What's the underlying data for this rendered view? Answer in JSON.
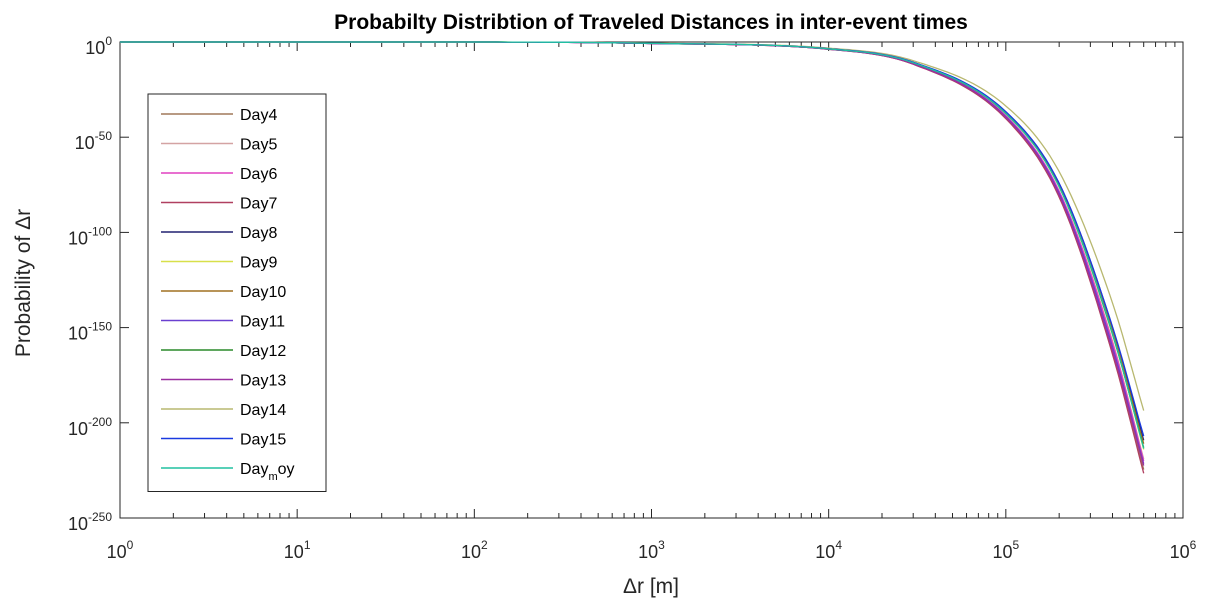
{
  "chart_data": {
    "type": "line",
    "title": "Probabilty Distribtion of Traveled Distances in inter-event times",
    "xlabel": "Δr [m]",
    "ylabel": "Probability of Δr",
    "xscale": "log",
    "yscale": "log",
    "xlim": [
      1,
      1000000
    ],
    "ylim_exponent": [
      -250,
      0
    ],
    "x_ticks": [
      {
        "base": "10",
        "exp": "0"
      },
      {
        "base": "10",
        "exp": "1"
      },
      {
        "base": "10",
        "exp": "2"
      },
      {
        "base": "10",
        "exp": "3"
      },
      {
        "base": "10",
        "exp": "4"
      },
      {
        "base": "10",
        "exp": "5"
      },
      {
        "base": "10",
        "exp": "6"
      }
    ],
    "y_ticks": [
      {
        "base": "10",
        "exp": "0",
        "value": 0
      },
      {
        "base": "10",
        "exp": "-50",
        "value": -50
      },
      {
        "base": "10",
        "exp": "-100",
        "value": -100
      },
      {
        "base": "10",
        "exp": "-150",
        "value": -150
      },
      {
        "base": "10",
        "exp": "-200",
        "value": -200
      },
      {
        "base": "10",
        "exp": "-250",
        "value": -250
      }
    ],
    "legend_position": "left",
    "x": [
      1,
      10,
      100,
      1000,
      10000,
      30000,
      100000,
      200000,
      400000,
      600000
    ],
    "series": [
      {
        "name": "Day4",
        "color": "#a0785a",
        "y_exponent": [
          0,
          0,
          -0.01,
          -0.8,
          -3.8,
          -11.6,
          -40.0,
          -81.0,
          -163.0,
          -224.6
        ]
      },
      {
        "name": "Day5",
        "color": "#d4a3a3",
        "y_exponent": [
          0,
          0,
          -0.01,
          -0.8,
          -3.7,
          -11.2,
          -38.6,
          -78.2,
          -157.0,
          -219.0
        ]
      },
      {
        "name": "Day6",
        "color": "#e040c0",
        "y_exponent": [
          0,
          0,
          -0.01,
          -0.8,
          -3.7,
          -11.3,
          -38.8,
          -78.5,
          -158.0,
          -220.0
        ]
      },
      {
        "name": "Day7",
        "color": "#b04060",
        "y_exponent": [
          0,
          0,
          -0.01,
          -0.8,
          -3.8,
          -11.7,
          -40.3,
          -81.5,
          -164.0,
          -226.5
        ]
      },
      {
        "name": "Day8",
        "color": "#202070",
        "y_exponent": [
          0,
          0,
          -0.01,
          -0.7,
          -3.5,
          -10.7,
          -36.7,
          -74.4,
          -150.0,
          -209.2
        ]
      },
      {
        "name": "Day9",
        "color": "#d8e04a",
        "y_exponent": [
          0,
          0,
          -0.01,
          -0.7,
          -3.6,
          -10.9,
          -37.4,
          -75.8,
          -153.0,
          -214.0
        ]
      },
      {
        "name": "Day10",
        "color": "#a07020",
        "y_exponent": [
          0,
          0,
          -0.01,
          -0.7,
          -3.5,
          -10.8,
          -37.1,
          -75.1,
          -151.5,
          -211.0
        ]
      },
      {
        "name": "Day11",
        "color": "#6a40d0",
        "y_exponent": [
          0,
          0,
          -0.01,
          -0.8,
          -3.7,
          -11.4,
          -39.2,
          -79.4,
          -160.0,
          -221.5
        ]
      },
      {
        "name": "Day12",
        "color": "#2a8a2a",
        "y_exponent": [
          0,
          0,
          -0.01,
          -0.7,
          -3.6,
          -10.9,
          -37.6,
          -76.0,
          -153.5,
          -213.0
        ]
      },
      {
        "name": "Day13",
        "color": "#9a30a0",
        "y_exponent": [
          0,
          0,
          -0.01,
          -0.8,
          -3.8,
          -11.5,
          -39.6,
          -80.3,
          -162.0,
          -222.5
        ]
      },
      {
        "name": "Day14",
        "color": "#b8b870",
        "y_exponent": [
          0,
          0,
          -0.01,
          -0.6,
          -3.2,
          -9.8,
          -33.6,
          -68.1,
          -137.0,
          -193.6
        ]
      },
      {
        "name": "Day15",
        "color": "#1a3ae0",
        "y_exponent": [
          0,
          0,
          -0.01,
          -0.7,
          -3.5,
          -10.6,
          -36.6,
          -74.2,
          -149.5,
          -207.0
        ]
      },
      {
        "name": "Day_moy",
        "color": "#20c0a0",
        "y_exponent": [
          0,
          0,
          -0.01,
          -0.7,
          -3.6,
          -10.9,
          -37.5,
          -76.0,
          -153.0,
          -213.5
        ]
      }
    ]
  }
}
